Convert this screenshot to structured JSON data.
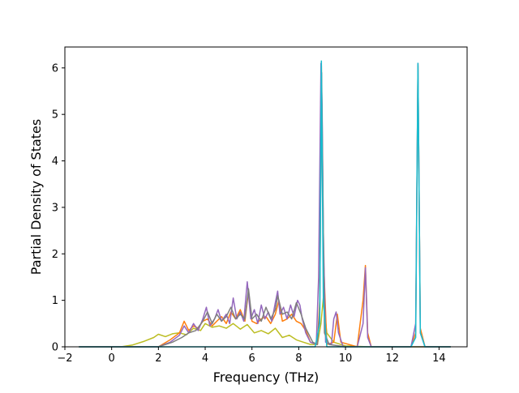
{
  "chart_data": {
    "type": "line",
    "title": "",
    "xlabel": "Frequency (THz)",
    "ylabel": "Partial Density of States",
    "xlim": [
      -2.0,
      15.2
    ],
    "ylim": [
      0,
      6.45
    ],
    "xticks": [
      -2,
      0,
      2,
      4,
      6,
      8,
      10,
      12,
      14
    ],
    "yticks": [
      0,
      1,
      2,
      3,
      4,
      5,
      6
    ],
    "grid": false,
    "legend": "none",
    "colors": [
      "#17becf",
      "#1f77b4",
      "#ff7f0e",
      "#2ca02c",
      "#bcbd22",
      "#d62728",
      "#e377c2",
      "#9467bd",
      "#7f7f7f"
    ],
    "series": [
      {
        "color": "#bcbd22",
        "x": [
          -1.4,
          0.4,
          0.9,
          1.4,
          1.8,
          2.0,
          2.3,
          2.6,
          2.9,
          3.2,
          3.5,
          3.8,
          4.0,
          4.3,
          4.6,
          4.9,
          5.2,
          5.5,
          5.8,
          6.1,
          6.4,
          6.7,
          7.0,
          7.3,
          7.6,
          7.9,
          8.2,
          8.5,
          8.8,
          8.95,
          9.05,
          9.2,
          9.5,
          10.0,
          11.0,
          14.5
        ],
        "y": [
          0,
          0,
          0.04,
          0.12,
          0.2,
          0.27,
          0.22,
          0.28,
          0.3,
          0.26,
          0.4,
          0.35,
          0.5,
          0.42,
          0.45,
          0.4,
          0.5,
          0.38,
          0.48,
          0.3,
          0.35,
          0.28,
          0.4,
          0.2,
          0.25,
          0.15,
          0.1,
          0.05,
          0.05,
          0.5,
          1.05,
          0.3,
          0.1,
          0.02,
          0,
          0
        ]
      },
      {
        "color": "#ff7f0e",
        "x": [
          -1.4,
          2.0,
          2.5,
          2.9,
          3.1,
          3.3,
          3.5,
          3.7,
          3.9,
          4.1,
          4.3,
          4.5,
          4.7,
          4.9,
          5.1,
          5.3,
          5.5,
          5.7,
          5.85,
          6.0,
          6.2,
          6.4,
          6.6,
          6.8,
          7.0,
          7.15,
          7.3,
          7.5,
          7.7,
          7.9,
          8.1,
          8.3,
          8.5,
          8.8,
          8.9,
          8.97,
          9.05,
          9.2,
          9.5,
          9.65,
          9.8,
          10.5,
          10.75,
          10.85,
          10.95,
          11.1,
          12.8,
          13.0,
          13.1,
          13.2,
          13.4,
          14.5
        ],
        "y": [
          0,
          0,
          0.15,
          0.3,
          0.55,
          0.35,
          0.45,
          0.4,
          0.55,
          0.6,
          0.45,
          0.55,
          0.65,
          0.5,
          0.75,
          0.6,
          0.8,
          0.55,
          1.2,
          0.55,
          0.5,
          0.6,
          0.65,
          0.5,
          0.7,
          1.0,
          0.55,
          0.6,
          0.7,
          0.55,
          0.5,
          0.35,
          0.1,
          0.05,
          1.0,
          6.05,
          2.0,
          0.05,
          0.1,
          0.7,
          0.1,
          0,
          1.0,
          1.75,
          0.3,
          0,
          0,
          0.3,
          6.05,
          0.4,
          0,
          0
        ]
      },
      {
        "color": "#9467bd",
        "x": [
          -1.4,
          2.0,
          2.5,
          2.9,
          3.1,
          3.3,
          3.5,
          3.7,
          3.9,
          4.05,
          4.2,
          4.4,
          4.55,
          4.7,
          4.9,
          5.05,
          5.2,
          5.35,
          5.5,
          5.65,
          5.8,
          5.95,
          6.1,
          6.25,
          6.4,
          6.55,
          6.7,
          6.85,
          7.0,
          7.1,
          7.2,
          7.35,
          7.5,
          7.65,
          7.8,
          7.95,
          8.05,
          8.15,
          8.3,
          8.5,
          8.75,
          8.85,
          8.95,
          9.0,
          9.05,
          9.15,
          9.4,
          9.5,
          9.6,
          9.7,
          9.9,
          10.5,
          10.75,
          10.85,
          10.95,
          11.1,
          12.8,
          13.0,
          13.1,
          13.2,
          13.4,
          14.5
        ],
        "y": [
          0,
          0,
          0.1,
          0.25,
          0.45,
          0.3,
          0.5,
          0.35,
          0.6,
          0.85,
          0.45,
          0.6,
          0.8,
          0.55,
          0.7,
          0.5,
          1.05,
          0.6,
          0.75,
          0.55,
          1.4,
          0.6,
          0.8,
          0.5,
          0.9,
          0.6,
          0.75,
          0.55,
          0.95,
          1.2,
          0.7,
          0.85,
          0.6,
          0.9,
          0.65,
          1.0,
          0.9,
          0.6,
          0.3,
          0.1,
          0.05,
          1.5,
          6.1,
          5.2,
          2.5,
          0.1,
          0.05,
          0.6,
          0.75,
          0.3,
          0,
          0,
          0.5,
          1.7,
          0.2,
          0,
          0,
          0.5,
          6.1,
          0.3,
          0,
          0
        ]
      },
      {
        "color": "#7f7f7f",
        "x": [
          -1.4,
          2.0,
          2.6,
          3.0,
          3.3,
          3.6,
          3.9,
          4.1,
          4.3,
          4.5,
          4.7,
          4.9,
          5.1,
          5.3,
          5.5,
          5.7,
          5.85,
          6.0,
          6.2,
          6.4,
          6.6,
          6.8,
          7.0,
          7.1,
          7.3,
          7.5,
          7.7,
          7.9,
          8.1,
          8.3,
          8.6,
          8.8,
          8.9,
          8.98,
          9.1,
          9.3,
          10.0,
          14.5
        ],
        "y": [
          0,
          0,
          0.1,
          0.2,
          0.3,
          0.35,
          0.55,
          0.75,
          0.5,
          0.7,
          0.55,
          0.65,
          0.85,
          0.6,
          0.7,
          0.6,
          1.25,
          0.6,
          0.7,
          0.55,
          0.85,
          0.6,
          0.8,
          1.1,
          0.7,
          0.75,
          0.6,
          0.95,
          0.7,
          0.4,
          0.1,
          0.05,
          0.8,
          5.9,
          0.3,
          0.05,
          0,
          0
        ]
      },
      {
        "color": "#17becf",
        "x": [
          -1.4,
          8.7,
          8.9,
          8.97,
          9.05,
          9.2,
          12.8,
          13.0,
          13.1,
          13.2,
          13.4,
          14.5
        ],
        "y": [
          0,
          0,
          0.5,
          6.15,
          1.0,
          0,
          0,
          0.2,
          6.1,
          0.3,
          0,
          0
        ]
      }
    ]
  }
}
